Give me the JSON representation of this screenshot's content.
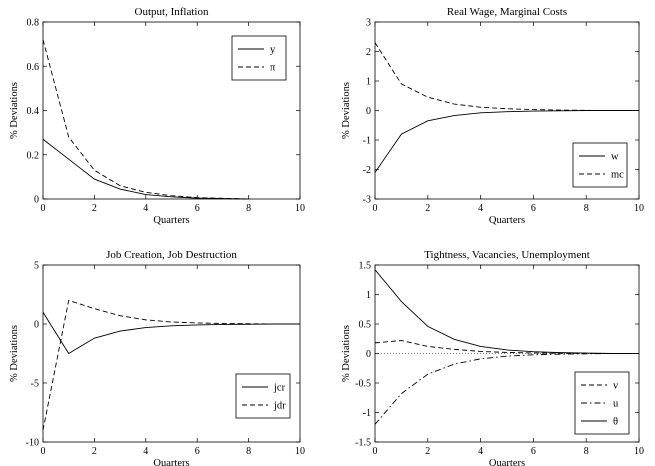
{
  "chart_data": [
    {
      "type": "line",
      "title": "Output, Inflation",
      "xlabel": "Quarters",
      "ylabel": "% Deviations",
      "xlim": [
        0,
        10
      ],
      "ylim": [
        0,
        0.8
      ],
      "xticks": [
        0,
        2,
        4,
        6,
        8,
        10
      ],
      "yticks": [
        0,
        0.2,
        0.4,
        0.6,
        0.8
      ],
      "grid": false,
      "legend_position": "top-right",
      "x": [
        0,
        1,
        2,
        3,
        4,
        5,
        6,
        7,
        8
      ],
      "series": [
        {
          "name": "y",
          "style": "solid",
          "values": [
            0.27,
            0.18,
            0.09,
            0.045,
            0.02,
            0.01,
            0.004,
            0.002,
            0.0
          ]
        },
        {
          "name": "π",
          "style": "dashed",
          "values": [
            0.72,
            0.28,
            0.13,
            0.06,
            0.03,
            0.015,
            0.006,
            0.003,
            0.0
          ]
        }
      ]
    },
    {
      "type": "line",
      "title": "Real Wage, Marginal Costs",
      "xlabel": "Quarters",
      "ylabel": "% Deviations",
      "xlim": [
        0,
        10
      ],
      "ylim": [
        -3,
        3
      ],
      "xticks": [
        0,
        2,
        4,
        6,
        8,
        10
      ],
      "yticks": [
        -3,
        -2,
        -1,
        0,
        1,
        2,
        3
      ],
      "grid": false,
      "legend_position": "bottom-right",
      "x": [
        0,
        1,
        2,
        3,
        4,
        5,
        6,
        7,
        8,
        9,
        10
      ],
      "series": [
        {
          "name": "w",
          "style": "solid",
          "values": [
            -2.1,
            -0.8,
            -0.35,
            -0.17,
            -0.08,
            -0.04,
            -0.02,
            -0.01,
            0,
            0,
            0
          ]
        },
        {
          "name": "mc",
          "style": "dashed",
          "values": [
            2.3,
            0.9,
            0.45,
            0.22,
            0.11,
            0.06,
            0.03,
            0.015,
            0.005,
            0,
            0
          ]
        }
      ]
    },
    {
      "type": "line",
      "title": "Job Creation, Job Destruction",
      "xlabel": "Quarters",
      "ylabel": "% Deviations",
      "xlim": [
        0,
        10
      ],
      "ylim": [
        -10,
        5
      ],
      "xticks": [
        0,
        2,
        4,
        6,
        8,
        10
      ],
      "yticks": [
        -10,
        -5,
        0,
        5
      ],
      "grid": false,
      "legend_position": "bottom-right",
      "x": [
        0,
        1,
        2,
        3,
        4,
        5,
        6,
        7,
        8,
        9,
        10
      ],
      "series": [
        {
          "name": "jcr",
          "style": "solid",
          "values": [
            1.0,
            -2.5,
            -1.2,
            -0.6,
            -0.3,
            -0.15,
            -0.08,
            -0.04,
            -0.02,
            0,
            0
          ]
        },
        {
          "name": "jdr",
          "style": "dashed",
          "values": [
            -9.0,
            2.0,
            1.3,
            0.7,
            0.35,
            0.17,
            0.09,
            0.045,
            0.02,
            0,
            0
          ]
        }
      ]
    },
    {
      "type": "line",
      "title": "Tightness, Vacancies, Unemployment",
      "xlabel": "Quarters",
      "ylabel": "% Deviations",
      "xlim": [
        0,
        10
      ],
      "ylim": [
        -1.5,
        1.5
      ],
      "xticks": [
        0,
        2,
        4,
        6,
        8,
        10
      ],
      "yticks": [
        -1.5,
        -1,
        -0.5,
        0,
        0.5,
        1,
        1.5
      ],
      "grid": false,
      "legend_position": "bottom-right",
      "zero_line": true,
      "x": [
        0,
        1,
        2,
        3,
        4,
        5,
        6,
        7,
        8,
        9,
        10
      ],
      "series": [
        {
          "name": "v",
          "style": "dashed",
          "values": [
            0.18,
            0.22,
            0.12,
            0.07,
            0.035,
            0.018,
            0.009,
            0.004,
            0.002,
            0,
            0
          ]
        },
        {
          "name": "u",
          "style": "dashdot",
          "values": [
            -1.2,
            -0.68,
            -0.35,
            -0.18,
            -0.09,
            -0.045,
            -0.022,
            -0.011,
            -0.005,
            0,
            0
          ]
        },
        {
          "name": "θ",
          "style": "solid",
          "values": [
            1.42,
            0.88,
            0.46,
            0.24,
            0.12,
            0.06,
            0.03,
            0.015,
            0.007,
            0,
            0
          ]
        }
      ]
    }
  ]
}
